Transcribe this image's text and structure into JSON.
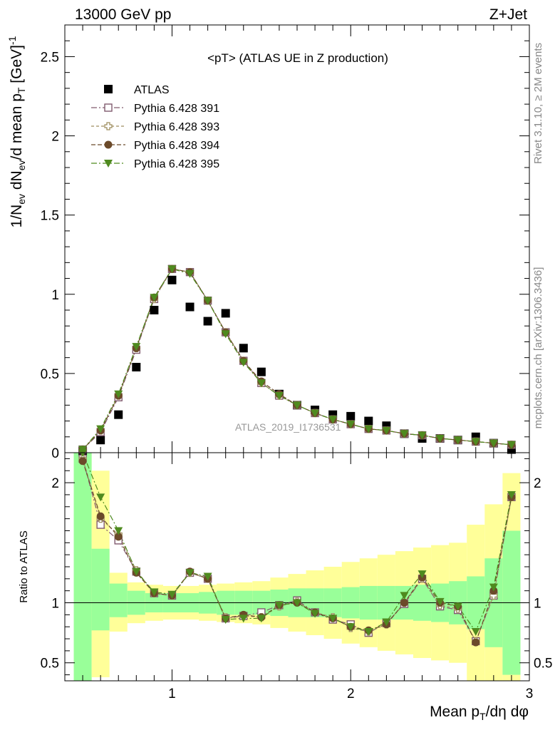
{
  "header": {
    "left": "13000 GeV pp",
    "right": "Z+Jet"
  },
  "side_labels": {
    "rivet": "Rivet 3.1.10, ≥ 2M events",
    "mcplots": "mcplots.cern.ch [arXiv:1306.3436]"
  },
  "chart_data": [
    {
      "type": "scatter",
      "panel": "main",
      "title": "<pT> (ATLAS UE in Z production)",
      "watermark": "ATLAS_2019_I1736531",
      "ylabel": "1/N_ev dN_ev/d mean p_T [GeV]^-1",
      "xlim": [
        0.4,
        3.0
      ],
      "ylim": [
        0,
        2.7
      ],
      "xticks": [
        1,
        2,
        3
      ],
      "yticks": [
        0,
        0.5,
        1,
        1.5,
        2,
        2.5
      ],
      "ytick_labels": [
        "0",
        "0.5",
        "1",
        "1.5",
        "2",
        "2.5"
      ],
      "legend_position": "top-left",
      "x": [
        0.5,
        0.6,
        0.7,
        0.8,
        0.9,
        1.0,
        1.1,
        1.2,
        1.3,
        1.4,
        1.5,
        1.6,
        1.7,
        1.8,
        1.9,
        2.0,
        2.1,
        2.2,
        2.3,
        2.4,
        2.5,
        2.6,
        2.7,
        2.8,
        2.9
      ],
      "series": [
        {
          "name": "ATLAS",
          "marker": "square-filled",
          "color": "#000000",
          "values": [
            0.01,
            0.08,
            0.24,
            0.54,
            0.9,
            1.09,
            0.92,
            0.83,
            0.88,
            0.66,
            0.51,
            0.37,
            0.3,
            0.27,
            0.24,
            0.23,
            0.2,
            0.17,
            0.12,
            0.09,
            0.09,
            0.08,
            0.1,
            0.06,
            0.02
          ]
        },
        {
          "name": "Pythia 6.428 391",
          "marker": "square-open",
          "color": "#805a6e",
          "dash": "8,3,2,3",
          "values": [
            0.02,
            0.13,
            0.35,
            0.65,
            0.97,
            1.16,
            1.14,
            0.96,
            0.76,
            0.58,
            0.44,
            0.36,
            0.3,
            0.25,
            0.21,
            0.18,
            0.15,
            0.14,
            0.12,
            0.11,
            0.09,
            0.08,
            0.07,
            0.06,
            0.05
          ]
        },
        {
          "name": "Pythia 6.428 393",
          "marker": "cross-open",
          "color": "#9e8e5f",
          "dash": "4,3",
          "values": [
            0.02,
            0.14,
            0.36,
            0.66,
            0.97,
            1.16,
            1.14,
            0.96,
            0.76,
            0.58,
            0.44,
            0.36,
            0.3,
            0.25,
            0.21,
            0.18,
            0.15,
            0.14,
            0.12,
            0.11,
            0.09,
            0.08,
            0.07,
            0.06,
            0.05
          ]
        },
        {
          "name": "Pythia 6.428 394",
          "marker": "circle-filled",
          "color": "#6b4a2a",
          "dash": "6,3",
          "values": [
            0.02,
            0.14,
            0.36,
            0.66,
            0.98,
            1.16,
            1.14,
            0.96,
            0.76,
            0.58,
            0.45,
            0.37,
            0.3,
            0.25,
            0.21,
            0.18,
            0.15,
            0.14,
            0.12,
            0.11,
            0.09,
            0.08,
            0.07,
            0.06,
            0.05
          ]
        },
        {
          "name": "Pythia 6.428 395",
          "marker": "triangle-down-filled",
          "color": "#4f8a1f",
          "dash": "8,3,2,3",
          "values": [
            0.02,
            0.15,
            0.37,
            0.67,
            0.98,
            1.16,
            1.13,
            0.96,
            0.75,
            0.57,
            0.44,
            0.36,
            0.3,
            0.25,
            0.21,
            0.18,
            0.15,
            0.14,
            0.12,
            0.11,
            0.09,
            0.08,
            0.07,
            0.06,
            0.05
          ]
        }
      ]
    },
    {
      "type": "scatter",
      "panel": "ratio",
      "ylabel": "Ratio to ATLAS",
      "xlabel": "Mean p_T/dη dφ",
      "xlim": [
        0.4,
        3.0
      ],
      "ylim": [
        0.35,
        2.25
      ],
      "xticks": [
        1,
        2,
        3
      ],
      "xtick_labels": [
        "1",
        "2",
        "3"
      ],
      "yticks": [
        0.5,
        1,
        2
      ],
      "ytick_labels": [
        "0.5",
        "1",
        "2"
      ],
      "reference_line": 1,
      "x": [
        0.5,
        0.6,
        0.7,
        0.8,
        0.9,
        1.0,
        1.1,
        1.2,
        1.3,
        1.4,
        1.5,
        1.6,
        1.7,
        1.8,
        1.9,
        2.0,
        2.1,
        2.2,
        2.3,
        2.4,
        2.5,
        2.6,
        2.7,
        2.8,
        2.9
      ],
      "bands": {
        "inner_color": "#99ff99",
        "outer_color": "#ffff99",
        "bin_edges": [
          0.45,
          0.55,
          0.65,
          0.75,
          0.85,
          0.95,
          1.05,
          1.15,
          1.25,
          1.35,
          1.45,
          1.55,
          1.65,
          1.75,
          1.85,
          1.95,
          2.05,
          2.15,
          2.25,
          2.35,
          2.45,
          2.55,
          2.65,
          2.75,
          2.85,
          2.95
        ],
        "inner_low": [
          0.35,
          0.77,
          0.88,
          0.9,
          0.92,
          0.92,
          0.92,
          0.91,
          0.9,
          0.9,
          0.9,
          0.89,
          0.88,
          0.88,
          0.88,
          0.87,
          0.86,
          0.86,
          0.86,
          0.85,
          0.84,
          0.82,
          0.78,
          0.63,
          0.4
        ],
        "inner_high": [
          2.25,
          1.45,
          1.16,
          1.1,
          1.08,
          1.08,
          1.08,
          1.09,
          1.1,
          1.1,
          1.1,
          1.11,
          1.12,
          1.12,
          1.12,
          1.13,
          1.14,
          1.14,
          1.14,
          1.15,
          1.16,
          1.18,
          1.22,
          1.37,
          1.6
        ],
        "outer_low": [
          0.35,
          0.38,
          0.76,
          0.83,
          0.85,
          0.86,
          0.86,
          0.85,
          0.84,
          0.83,
          0.82,
          0.79,
          0.76,
          0.73,
          0.7,
          0.66,
          0.63,
          0.6,
          0.57,
          0.54,
          0.52,
          0.5,
          0.35,
          0.35,
          0.35
        ],
        "outer_high": [
          2.25,
          2.1,
          1.25,
          1.17,
          1.15,
          1.14,
          1.14,
          1.15,
          1.16,
          1.17,
          1.18,
          1.21,
          1.24,
          1.27,
          1.3,
          1.34,
          1.37,
          1.4,
          1.43,
          1.46,
          1.48,
          1.5,
          1.65,
          1.82,
          2.08
        ]
      },
      "series": [
        {
          "name": "Pythia 6.428 391",
          "values": [
            2.2,
            1.65,
            1.52,
            1.26,
            1.08,
            1.06,
            1.25,
            1.2,
            0.87,
            0.89,
            0.92,
            0.98,
            1.02,
            0.92,
            0.86,
            0.82,
            0.75,
            0.83,
            0.99,
            1.2,
            0.97,
            0.94,
            0.68,
            1.06,
            1.88
          ]
        },
        {
          "name": "Pythia 6.428 393",
          "values": [
            2.2,
            1.7,
            1.57,
            1.27,
            1.08,
            1.06,
            1.25,
            1.2,
            0.88,
            0.89,
            0.88,
            0.97,
            1.01,
            0.92,
            0.88,
            0.79,
            0.76,
            0.82,
            1.0,
            1.2,
            0.98,
            0.95,
            0.68,
            1.06,
            1.88
          ]
        },
        {
          "name": "Pythia 6.428 394",
          "values": [
            2.18,
            1.72,
            1.55,
            1.25,
            1.08,
            1.06,
            1.26,
            1.2,
            0.87,
            0.9,
            0.88,
            0.98,
            1.0,
            0.92,
            0.87,
            0.8,
            0.77,
            0.82,
            1.0,
            1.21,
            1.0,
            0.97,
            0.67,
            1.1,
            1.88
          ]
        },
        {
          "name": "Pythia 6.428 395",
          "values": [
            2.25,
            1.88,
            1.6,
            1.26,
            1.09,
            1.07,
            1.25,
            1.22,
            0.86,
            0.87,
            0.87,
            0.98,
            1.0,
            0.91,
            0.87,
            0.8,
            0.76,
            0.84,
            1.06,
            1.24,
            1.01,
            0.97,
            0.76,
            1.13,
            1.9
          ]
        }
      ]
    }
  ]
}
